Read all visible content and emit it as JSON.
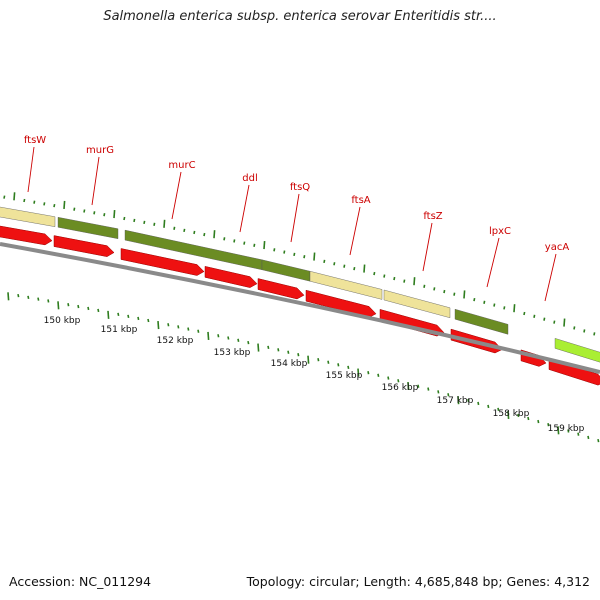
{
  "title": "Salmonella enterica subsp. enterica serovar Enteritidis str....",
  "footer": {
    "accession": "Accession: NC_011294",
    "summary": "Topology: circular; Length: 4,685,848 bp; Genes: 4,312"
  },
  "colors": {
    "cds_red": "#ee1111",
    "gene_olive": "#6b8c23",
    "gene_pale": "#efe39a",
    "gene_lime": "#aaee33",
    "tick_green": "#2e7d1e",
    "backbone": "#8a8a8a",
    "label_red": "#cc0000"
  },
  "genes": [
    {
      "name": "ftsW"
    },
    {
      "name": "murG"
    },
    {
      "name": "murC"
    },
    {
      "name": "ddl"
    },
    {
      "name": "ftsQ"
    },
    {
      "name": "ftsA"
    },
    {
      "name": "ftsZ"
    },
    {
      "name": "lpxC"
    },
    {
      "name": "yacA"
    }
  ],
  "kbp_labels": [
    "150 kbp",
    "151 kbp",
    "152 kbp",
    "153 kbp",
    "154 kbp",
    "155 kbp",
    "156 kbp",
    "157 kbp",
    "158 kbp",
    "159 kbp"
  ]
}
